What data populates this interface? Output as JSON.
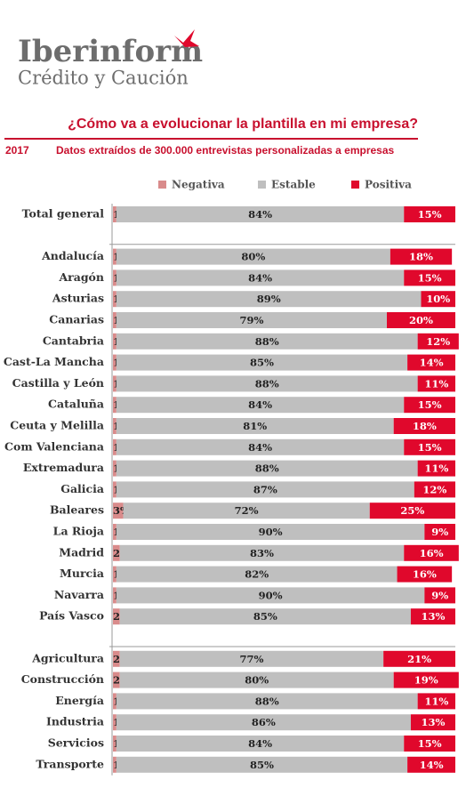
{
  "header": {
    "brand": "Iberinform",
    "tagline": "Crédito y Caución"
  },
  "chart_data": {
    "type": "stacked-bar-horizontal",
    "title": "¿Cómo va a evolucionar la plantilla en mi empresa?",
    "year": "2017",
    "subtitle": "Datos extraídos de 300.000 entrevistas personalizadas a empresas",
    "xlim": [
      0,
      100
    ],
    "categories": [
      "Total general",
      null,
      "Andalucía",
      "Aragón",
      "Asturias",
      "Canarias",
      "Cantabria",
      "Cast-La Mancha",
      "Castilla y León",
      "Cataluña",
      "Ceuta y Melilla",
      "Com Valenciana",
      "Extremadura",
      "Galicia",
      "Baleares",
      "La Rioja",
      "Madrid",
      "Murcia",
      "Navarra",
      "País Vasco",
      null,
      "Agricultura",
      "Construcción",
      "Energía",
      "Industria",
      "Servicios",
      "Transporte"
    ],
    "series": [
      {
        "name": "Negativa",
        "color": "#d98b8b",
        "values": [
          1,
          null,
          1,
          1,
          1,
          1,
          1,
          1,
          1,
          1,
          1,
          1,
          1,
          1,
          3,
          1,
          2,
          1,
          1,
          2,
          null,
          2,
          2,
          1,
          1,
          1,
          1
        ],
        "value_labels": [
          "1%",
          null,
          "1%",
          "1%",
          "1%",
          "1%",
          "1%",
          "1%",
          "1%",
          "1%",
          "1%",
          "1%",
          "1%",
          "1%",
          "3%",
          "1%",
          "2%",
          "1%",
          "1%",
          "2%",
          null,
          "2%",
          "2%",
          "1%",
          "1%",
          "1%",
          "1%"
        ]
      },
      {
        "name": "Estable",
        "color": "#bfbfbf",
        "values": [
          84,
          null,
          80,
          84,
          89,
          79,
          88,
          85,
          88,
          84,
          81,
          84,
          88,
          87,
          72,
          90,
          83,
          82,
          90,
          85,
          null,
          77,
          80,
          88,
          86,
          84,
          85
        ],
        "value_labels": [
          "84%",
          null,
          "80%",
          "84%",
          "89%",
          "79%",
          "88%",
          "85%",
          "88%",
          "84%",
          "81%",
          "84%",
          "88%",
          "87%",
          "72%",
          "90%",
          "83%",
          "82%",
          "90%",
          "85%",
          null,
          "77%",
          "80%",
          "88%",
          "86%",
          "84%",
          "85%"
        ]
      },
      {
        "name": "Positiva",
        "color": "#e0082c",
        "values": [
          15,
          null,
          18,
          15,
          10,
          20,
          12,
          14,
          11,
          15,
          18,
          15,
          11,
          12,
          25,
          9,
          16,
          16,
          9,
          13,
          null,
          21,
          19,
          11,
          13,
          15,
          14
        ],
        "value_labels": [
          "15%",
          null,
          "18%",
          "15%",
          "10%",
          "20%",
          "12%",
          "14%",
          "11%",
          "15%",
          "18%",
          "15%",
          "11%",
          "12%",
          "25%",
          "9%",
          "16%",
          "16%",
          "9%",
          "13%",
          null,
          "21%",
          "19%",
          "11%",
          "13%",
          "15%",
          "14%"
        ]
      }
    ]
  }
}
